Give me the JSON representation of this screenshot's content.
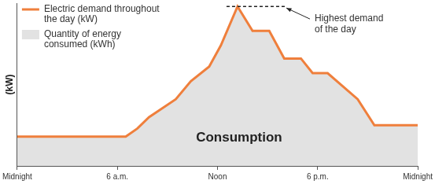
{
  "chart_data": {
    "type": "line",
    "y_label": "(kW)",
    "x": [
      0,
      6.5,
      7.2,
      7.9,
      9.5,
      10.4,
      11.5,
      12.2,
      13.2,
      14.1,
      15.1,
      16,
      17,
      17.7,
      18.6,
      20.4,
      21.4,
      24
    ],
    "series": [
      {
        "name": "Electric demand throughout the day (kW)",
        "color": "#ef7f3c",
        "values": [
          18,
          18,
          23,
          30,
          41,
          52,
          61,
          74,
          98,
          83,
          83,
          66,
          66,
          57,
          57,
          41,
          25,
          25
        ]
      }
    ],
    "area": {
      "name": "Quantity of energy consumed (kWh)",
      "color": "#e2e2e2"
    },
    "area_label": "Consumption",
    "peak_label": "Highest demand of the day",
    "xlim": [
      0,
      24
    ],
    "xticks": [
      {
        "value": 0,
        "label": "Midnight"
      },
      {
        "value": 6,
        "label": "6 a.m."
      },
      {
        "value": 12,
        "label": "Noon"
      },
      {
        "value": 18,
        "label": "6 p.m."
      },
      {
        "value": 24,
        "label": "Midnight"
      }
    ],
    "ylim": [
      0,
      100
    ],
    "grid": false,
    "legend": "top-left",
    "tick_labels": "x"
  }
}
